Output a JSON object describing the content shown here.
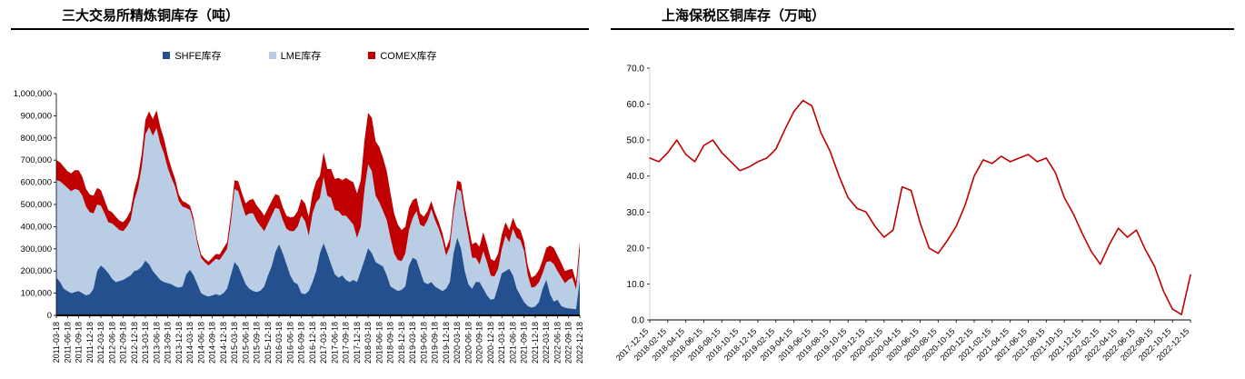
{
  "page": {
    "background": "#ffffff"
  },
  "chart_data": [
    {
      "type": "area",
      "stacked": true,
      "title": "三大交易所精炼铜库存（吨）",
      "legend_position": "top",
      "ylim": [
        0,
        1000000
      ],
      "y_ticks": [
        "0",
        "100,000",
        "200,000",
        "300,000",
        "400,000",
        "500,000",
        "600,000",
        "700,000",
        "800,000",
        "900,000",
        "1,000,000"
      ],
      "x_tick_step": 3,
      "x_tick_labels": [
        "2011-03-18",
        "2011-06-18",
        "2011-09-18",
        "2011-12-18",
        "2012-03-18",
        "2012-06-18",
        "2012-09-18",
        "2012-12-18",
        "2013-03-18",
        "2013-06-18",
        "2013-09-18",
        "2013-12-18",
        "2014-03-18",
        "2014-06-18",
        "2014-09-18",
        "2014-12-18",
        "2015-03-18",
        "2015-06-18",
        "2015-09-18",
        "2015-12-18",
        "2016-03-18",
        "2016-06-18",
        "2016-09-18",
        "2016-12-18",
        "2017-03-18",
        "2017-06-18",
        "2017-09-18",
        "2017-12-18",
        "2018-03-18",
        "2018-06-18",
        "2018-09-18",
        "2018-12-18",
        "2019-03-18",
        "2019-06-18",
        "2019-09-18",
        "2019-12-18",
        "2020-03-18",
        "2020-06-18",
        "2020-09-18",
        "2020-12-18",
        "2021-03-18",
        "2021-06-18",
        "2021-09-18",
        "2021-12-18",
        "2022-03-18",
        "2022-06-18",
        "2022-09-18",
        "2022-12-18"
      ],
      "series": [
        {
          "name": "SHFE库存",
          "color": "#24508f",
          "values": [
            170000,
            150000,
            120000,
            110000,
            100000,
            105000,
            110000,
            100000,
            90000,
            95000,
            120000,
            200000,
            225000,
            210000,
            190000,
            165000,
            150000,
            155000,
            160000,
            170000,
            180000,
            200000,
            205000,
            220000,
            247000,
            230000,
            200000,
            180000,
            160000,
            150000,
            145000,
            140000,
            130000,
            125000,
            130000,
            185000,
            205000,
            180000,
            140000,
            100000,
            90000,
            85000,
            90000,
            95000,
            90000,
            100000,
            120000,
            180000,
            240000,
            220000,
            180000,
            140000,
            120000,
            110000,
            105000,
            112000,
            130000,
            180000,
            220000,
            285000,
            320000,
            280000,
            230000,
            180000,
            150000,
            140000,
            100000,
            95000,
            110000,
            150000,
            200000,
            280000,
            325000,
            280000,
            230000,
            185000,
            170000,
            180000,
            160000,
            150000,
            160000,
            150000,
            200000,
            250000,
            302000,
            280000,
            240000,
            230000,
            220000,
            180000,
            130000,
            120000,
            110000,
            115000,
            130000,
            225000,
            260000,
            250000,
            200000,
            150000,
            140000,
            150000,
            130000,
            120000,
            110000,
            120000,
            150000,
            280000,
            350000,
            300000,
            200000,
            140000,
            120000,
            150000,
            150000,
            120000,
            90000,
            70000,
            75000,
            130000,
            190000,
            200000,
            210000,
            180000,
            120000,
            90000,
            60000,
            42000,
            35000,
            40000,
            60000,
            120000,
            160000,
            95000,
            62000,
            70000,
            42000,
            35000,
            31000,
            30000,
            28000,
            160000
          ]
        },
        {
          "name": "LME库存",
          "color": "#b9cde5",
          "values": [
            440000,
            455000,
            470000,
            465000,
            460000,
            465000,
            455000,
            440000,
            400000,
            370000,
            340000,
            300000,
            270000,
            250000,
            230000,
            250000,
            250000,
            230000,
            220000,
            230000,
            250000,
            320000,
            370000,
            450000,
            570000,
            620000,
            610000,
            665000,
            615000,
            580000,
            520000,
            480000,
            450000,
            390000,
            360000,
            300000,
            270000,
            240000,
            185000,
            160000,
            150000,
            140000,
            150000,
            160000,
            160000,
            175000,
            180000,
            240000,
            330000,
            340000,
            320000,
            310000,
            340000,
            350000,
            320000,
            290000,
            250000,
            235000,
            230000,
            200000,
            160000,
            150000,
            160000,
            200000,
            230000,
            260000,
            350000,
            330000,
            250000,
            310000,
            310000,
            250000,
            300000,
            260000,
            300000,
            290000,
            300000,
            270000,
            290000,
            280000,
            250000,
            200000,
            200000,
            320000,
            380000,
            370000,
            300000,
            280000,
            250000,
            250000,
            220000,
            160000,
            140000,
            130000,
            150000,
            160000,
            180000,
            220000,
            210000,
            250000,
            290000,
            330000,
            300000,
            270000,
            230000,
            150000,
            160000,
            180000,
            220000,
            260000,
            250000,
            220000,
            140000,
            110000,
            80000,
            170000,
            150000,
            110000,
            100000,
            80000,
            110000,
            160000,
            120000,
            210000,
            230000,
            250000,
            230000,
            140000,
            90000,
            90000,
            90000,
            70000,
            80000,
            150000,
            170000,
            130000,
            130000,
            110000,
            130000,
            140000,
            90000,
            130000
          ]
        },
        {
          "name": "COMEX库存",
          "color": "#c00000",
          "values": [
            90000,
            85000,
            80000,
            75000,
            80000,
            85000,
            90000,
            85000,
            80000,
            80000,
            80000,
            75000,
            70000,
            60000,
            55000,
            50000,
            45000,
            42000,
            40000,
            40000,
            42000,
            45000,
            50000,
            60000,
            65000,
            70000,
            75000,
            80000,
            75000,
            65000,
            55000,
            45000,
            35000,
            30000,
            25000,
            22000,
            20000,
            18000,
            17000,
            15000,
            15000,
            17000,
            20000,
            22000,
            25000,
            28000,
            30000,
            35000,
            40000,
            45000,
            50000,
            55000,
            60000,
            65000,
            70000,
            72000,
            70000,
            68000,
            65000,
            62000,
            60000,
            58000,
            60000,
            62000,
            65000,
            70000,
            75000,
            80000,
            85000,
            90000,
            95000,
            100000,
            110000,
            120000,
            130000,
            140000,
            150000,
            160000,
            170000,
            180000,
            190000,
            200000,
            210000,
            220000,
            232000,
            240000,
            245000,
            250000,
            240000,
            220000,
            200000,
            180000,
            160000,
            140000,
            120000,
            100000,
            80000,
            60000,
            50000,
            45000,
            40000,
            35000,
            33000,
            32000,
            30000,
            32000,
            35000,
            35000,
            38000,
            40000,
            42000,
            45000,
            60000,
            70000,
            80000,
            85000,
            80000,
            75000,
            70000,
            68000,
            65000,
            60000,
            55000,
            50000,
            48000,
            45000,
            43000,
            42000,
            45000,
            50000,
            55000,
            60000,
            65000,
            70000,
            72000,
            70000,
            65000,
            55000,
            45000,
            40000,
            35000,
            40000
          ]
        }
      ]
    },
    {
      "type": "line",
      "title": "上海保税区铜库存（万吨）",
      "color": "#c00000",
      "ylim": [
        0,
        70
      ],
      "y_ticks": [
        "0.0",
        "10.0",
        "20.0",
        "30.0",
        "40.0",
        "50.0",
        "60.0",
        "70.0"
      ],
      "x_tick_step": 2,
      "x_tick_labels": [
        "2017-12-15",
        "2018-02-15",
        "2018-04-15",
        "2018-06-15",
        "2018-08-15",
        "2018-10-15",
        "2018-12-15",
        "2019-02-15",
        "2019-04-15",
        "2019-06-15",
        "2019-08-15",
        "2019-10-15",
        "2019-12-15",
        "2020-02-15",
        "2020-04-15",
        "2020-06-15",
        "2020-08-15",
        "2020-10-15",
        "2020-12-15",
        "2021-02-15",
        "2021-04-15",
        "2021-06-15",
        "2021-08-15",
        "2021-10-15",
        "2021-12-15",
        "2022-02-15",
        "2022-04-15",
        "2022-06-15",
        "2022-08-15",
        "2022-10-15",
        "2022-12-15"
      ],
      "values": [
        45.0,
        44.0,
        46.5,
        50.0,
        46.0,
        44.0,
        48.5,
        50.0,
        46.5,
        44.0,
        41.5,
        42.5,
        44.0,
        45.0,
        47.5,
        53.0,
        58.0,
        61.0,
        59.5,
        52.0,
        47.0,
        40.0,
        34.0,
        31.0,
        30.0,
        26.0,
        23.0,
        25.0,
        37.0,
        36.0,
        27.0,
        20.0,
        18.5,
        22.0,
        26.0,
        32.0,
        40.0,
        44.5,
        43.5,
        45.5,
        44.0,
        45.0,
        46.0,
        44.0,
        45.0,
        41.0,
        34.0,
        29.5,
        24.0,
        19.0,
        15.5,
        21.0,
        25.5,
        23.0,
        25.0,
        19.5,
        15.0,
        8.0,
        3.0,
        1.5,
        12.5
      ]
    }
  ]
}
